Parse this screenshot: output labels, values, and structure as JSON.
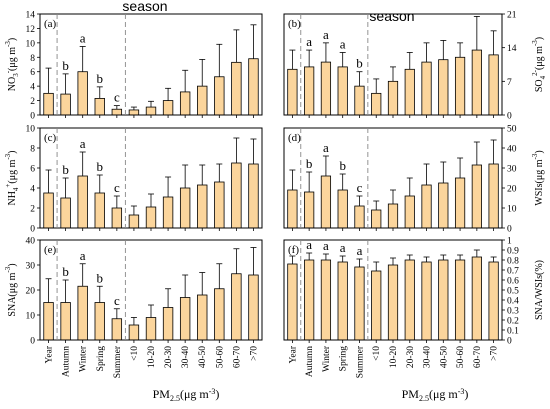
{
  "season_label": "season",
  "x_title": "PM",
  "x_title_sub": "2.5",
  "x_title_unit": "(μg m",
  "x_title_unit_sup": "-3",
  "x_title_end": ")",
  "categories": [
    "Year",
    "Autumn",
    "Winter",
    "Spring",
    "Summer",
    "<10",
    "10-20",
    "20-30",
    "30-40",
    "40-50",
    "50-60",
    "60-70",
    ">70"
  ],
  "chart_data": [
    {
      "panel": "(a)",
      "type": "bar",
      "position": "left",
      "ylabel": {
        "pre": "NO",
        "sub": "3",
        "sup": "-",
        "post": "(μg m",
        "sup2": "-3",
        "end": ")"
      },
      "ylim": [
        0,
        14
      ],
      "yticks": [
        0,
        2,
        4,
        6,
        8,
        10,
        12,
        14
      ],
      "values": [
        3.0,
        2.9,
        6.0,
        2.3,
        0.8,
        0.7,
        1.1,
        2.0,
        3.2,
        4.0,
        5.3,
        7.3,
        7.8
      ],
      "errors": [
        3.5,
        2.8,
        3.5,
        1.6,
        0.5,
        0.4,
        0.8,
        1.7,
        3.0,
        3.7,
        4.5,
        4.5,
        4.7
      ],
      "letters": [
        "",
        "b",
        "a",
        "b",
        "c",
        "",
        "",
        "",
        "",
        "",
        "",
        "",
        ""
      ]
    },
    {
      "panel": "(b)",
      "type": "bar",
      "position": "right",
      "ylabel": {
        "pre": "SO",
        "sub": "4",
        "sup": "2-",
        "post": "(μg m",
        "sup2": "-3",
        "end": ")"
      },
      "ylim": [
        0,
        21
      ],
      "yticks": [
        0,
        7,
        14,
        21
      ],
      "values": [
        9.5,
        10.0,
        11.0,
        10.0,
        6.0,
        4.5,
        7.0,
        9.5,
        11.0,
        11.5,
        12.0,
        13.5,
        12.5
      ],
      "errors": [
        4.0,
        3.5,
        4.0,
        3.0,
        3.0,
        3.0,
        3.0,
        3.5,
        4.0,
        4.0,
        3.0,
        7.0,
        5.0
      ],
      "letters": [
        "",
        "a",
        "a",
        "a",
        "b",
        "",
        "",
        "",
        "",
        "",
        "",
        "",
        ""
      ]
    },
    {
      "panel": "(c)",
      "type": "bar",
      "position": "left",
      "ylabel": {
        "pre": "NH",
        "sub": "4",
        "sup": "+",
        "post": "(μg m",
        "sup2": "-3",
        "end": ")"
      },
      "ylim": [
        0,
        10
      ],
      "yticks": [
        0,
        2,
        4,
        6,
        8,
        10
      ],
      "values": [
        3.5,
        3.0,
        5.2,
        3.5,
        2.0,
        1.3,
        2.1,
        3.1,
        4.0,
        4.3,
        4.6,
        6.5,
        6.4
      ],
      "errors": [
        2.3,
        2.0,
        2.4,
        1.8,
        1.2,
        0.9,
        1.3,
        2.0,
        2.3,
        2.0,
        1.8,
        2.5,
        2.5
      ],
      "letters": [
        "",
        "b",
        "a",
        "b",
        "c",
        "",
        "",
        "",
        "",
        "",
        "",
        "",
        ""
      ]
    },
    {
      "panel": "(d)",
      "type": "bar",
      "position": "right",
      "ylabel": {
        "pre": "WSIs",
        "sub": "",
        "sup": "",
        "post": "(μg m",
        "sup2": "-3",
        "end": ")"
      },
      "ylim": [
        0,
        50
      ],
      "yticks": [
        0,
        10,
        20,
        30,
        40,
        50
      ],
      "values": [
        19.0,
        18.0,
        26.0,
        19.0,
        11.0,
        9.0,
        12.0,
        16.0,
        21.5,
        22.5,
        25.0,
        31.5,
        32.0
      ],
      "errors": [
        10.0,
        10.0,
        10.0,
        8.0,
        5.0,
        4.5,
        7.0,
        9.0,
        10.5,
        10.5,
        10.0,
        11.5,
        12.0
      ],
      "letters": [
        "",
        "b",
        "a",
        "b",
        "c",
        "",
        "",
        "",
        "",
        "",
        "",
        "",
        ""
      ]
    },
    {
      "panel": "(e)",
      "type": "bar",
      "position": "left",
      "ylabel": {
        "pre": "SNA",
        "sub": "",
        "sup": "",
        "post": "(μg m",
        "sup2": "-3",
        "end": ")"
      },
      "ylim": [
        0,
        40
      ],
      "yticks": [
        0,
        10,
        20,
        30,
        40
      ],
      "values": [
        15.0,
        15.0,
        21.5,
        15.0,
        8.5,
        6.0,
        9.0,
        13.0,
        17.0,
        18.0,
        20.5,
        26.5,
        26.0
      ],
      "errors": [
        9.5,
        9.0,
        9.0,
        6.5,
        4.0,
        3.0,
        5.0,
        7.5,
        9.0,
        9.0,
        10.0,
        10.0,
        11.0
      ],
      "letters": [
        "",
        "b",
        "a",
        "b",
        "c",
        "",
        "",
        "",
        "",
        "",
        "",
        "",
        ""
      ]
    },
    {
      "panel": "(f)",
      "type": "bar",
      "position": "right",
      "ylabel": {
        "pre": "SNA/WSIs",
        "sub": "",
        "sup": "",
        "post": "(%)",
        "sup2": "",
        "end": ""
      },
      "ylim": [
        0,
        1.0
      ],
      "yticks": [
        0,
        0.1,
        0.2,
        0.3,
        0.4,
        0.5,
        0.6,
        0.7,
        0.8,
        0.9,
        1.0
      ],
      "values": [
        0.76,
        0.8,
        0.8,
        0.78,
        0.73,
        0.69,
        0.75,
        0.8,
        0.78,
        0.8,
        0.8,
        0.83,
        0.78
      ],
      "errors": [
        0.08,
        0.07,
        0.06,
        0.06,
        0.08,
        0.09,
        0.07,
        0.05,
        0.05,
        0.05,
        0.05,
        0.07,
        0.05
      ],
      "letters": [
        "",
        "a",
        "a",
        "a",
        "a",
        "",
        "",
        "",
        "",
        "",
        "",
        "",
        ""
      ]
    }
  ]
}
